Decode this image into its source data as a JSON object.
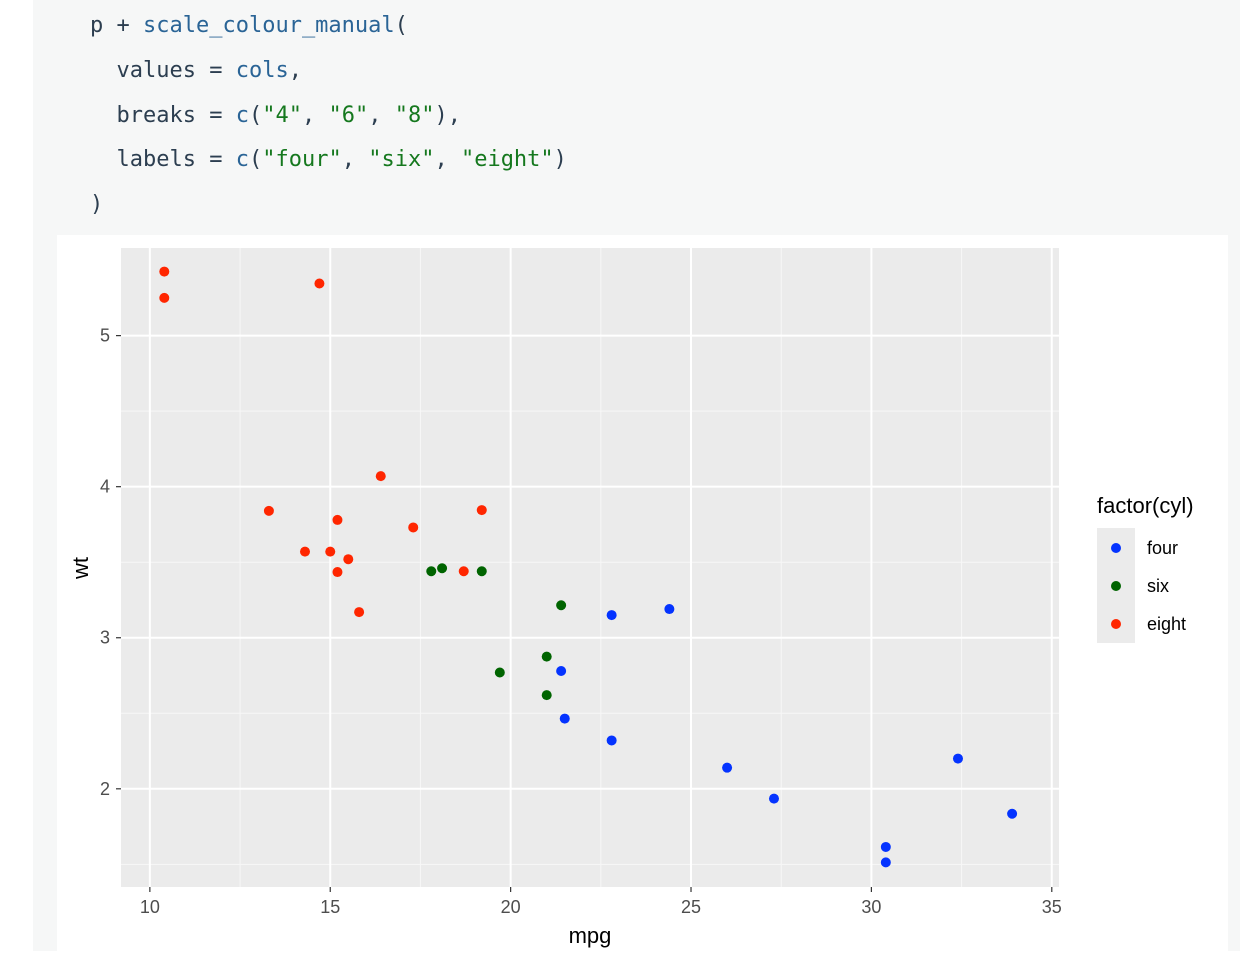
{
  "code": {
    "line1": {
      "obj": "p",
      "op": " + ",
      "fn": "scale_colour_manual",
      "open": "("
    },
    "line2": {
      "indent": "  ",
      "arg": "values",
      "eq": " = ",
      "val": "cols",
      "comma": ","
    },
    "line3": {
      "indent": "  ",
      "arg": "breaks",
      "eq": " = ",
      "fn": "c",
      "open": "(",
      "s1": "\"4\"",
      "sep1": ", ",
      "s2": "\"6\"",
      "sep2": ", ",
      "s3": "\"8\"",
      "close": "),"
    },
    "line4": {
      "indent": "  ",
      "arg": "labels",
      "eq": " = ",
      "fn": "c",
      "open": "(",
      "s1": "\"four\"",
      "sep1": ", ",
      "s2": "\"six\"",
      "sep2": ", ",
      "s3": "\"eight\"",
      "close": ")"
    },
    "line5": {
      "close": ")"
    }
  },
  "chart_data": {
    "type": "scatter",
    "xlabel": "mpg",
    "ylabel": "wt",
    "xlim": [
      9.2,
      35.2
    ],
    "ylim": [
      1.35,
      5.58
    ],
    "xticks": [
      10,
      15,
      20,
      25,
      30,
      35
    ],
    "yticks": [
      2,
      3,
      4,
      5
    ],
    "grid": true,
    "legend": {
      "title": "factor(cyl)",
      "placement": "right",
      "entries": [
        {
          "label": "four",
          "color": "#0433ff"
        },
        {
          "label": "six",
          "color": "#006400"
        },
        {
          "label": "eight",
          "color": "#ff2600"
        }
      ]
    },
    "series": [
      {
        "name": "four",
        "color": "#0433ff",
        "points": [
          [
            22.8,
            2.32
          ],
          [
            24.4,
            3.19
          ],
          [
            22.8,
            3.15
          ],
          [
            32.4,
            2.2
          ],
          [
            30.4,
            1.615
          ],
          [
            33.9,
            1.835
          ],
          [
            21.5,
            2.465
          ],
          [
            27.3,
            1.935
          ],
          [
            26.0,
            2.14
          ],
          [
            30.4,
            1.513
          ],
          [
            21.4,
            2.78
          ]
        ]
      },
      {
        "name": "six",
        "color": "#006400",
        "points": [
          [
            21.0,
            2.62
          ],
          [
            21.0,
            2.875
          ],
          [
            21.4,
            3.215
          ],
          [
            18.1,
            3.46
          ],
          [
            19.2,
            3.44
          ],
          [
            17.8,
            3.44
          ],
          [
            19.7,
            2.77
          ]
        ]
      },
      {
        "name": "eight",
        "color": "#ff2600",
        "points": [
          [
            18.7,
            3.44
          ],
          [
            14.3,
            3.57
          ],
          [
            16.4,
            4.07
          ],
          [
            17.3,
            3.73
          ],
          [
            15.2,
            3.78
          ],
          [
            10.4,
            5.25
          ],
          [
            10.4,
            5.424
          ],
          [
            14.7,
            5.345
          ],
          [
            15.5,
            3.52
          ],
          [
            15.2,
            3.435
          ],
          [
            13.3,
            3.84
          ],
          [
            19.2,
            3.845
          ],
          [
            15.8,
            3.17
          ],
          [
            15.0,
            3.57
          ]
        ]
      }
    ]
  }
}
